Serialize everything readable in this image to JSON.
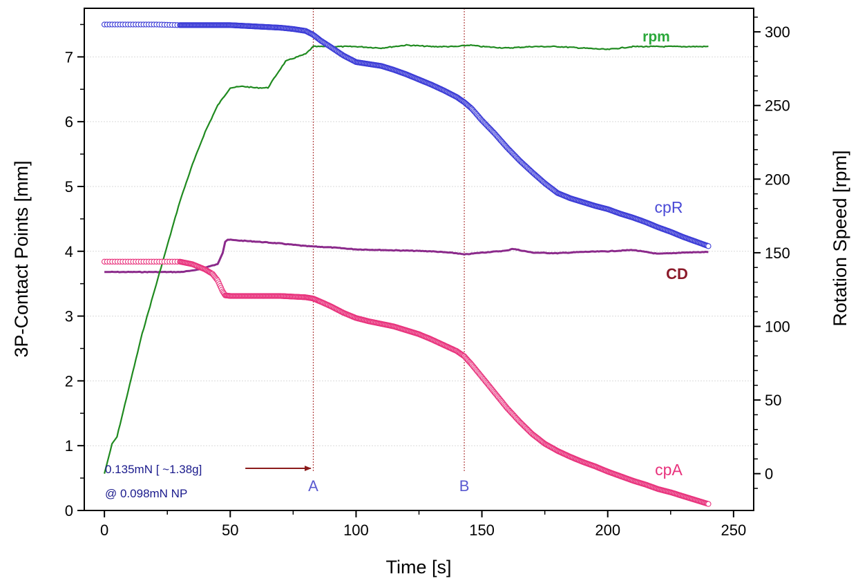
{
  "chart_data": {
    "type": "line",
    "xlabel": "Time  [s]",
    "ylabel_left": "3P-Contact Points [mm]",
    "ylabel_right": "Rotation Speed  [rpm]",
    "xlim": [
      -8,
      258
    ],
    "ylim_left": [
      0,
      7.75
    ],
    "ylim_right": [
      -25,
      316
    ],
    "x_ticks": [
      0,
      50,
      100,
      150,
      200,
      250
    ],
    "y_left_ticks": [
      0,
      1,
      2,
      3,
      4,
      5,
      6,
      7
    ],
    "y_right_ticks": [
      0,
      50,
      100,
      150,
      200,
      250,
      300
    ],
    "grid": true,
    "markers": [
      {
        "label": "A",
        "x": 83
      },
      {
        "label": "B",
        "x": 143
      }
    ],
    "annotation": {
      "line1": "0.135mN [ ~1.38g]",
      "line2": "@ 0.098mN NP",
      "arrow_from": [
        56,
        0.65
      ],
      "arrow_to": [
        82,
        0.65
      ]
    },
    "series": [
      {
        "name": "cpR",
        "axis": "left",
        "style": "circles",
        "color": "#3a3ad6",
        "x": [
          0,
          10,
          20,
          30,
          40,
          50,
          60,
          70,
          75,
          80,
          83,
          86,
          90,
          95,
          100,
          105,
          110,
          115,
          120,
          125,
          130,
          135,
          140,
          143,
          146,
          150,
          155,
          160,
          165,
          170,
          175,
          180,
          185,
          190,
          195,
          200,
          205,
          210,
          215,
          220,
          225,
          230,
          235,
          240
        ],
        "y": [
          7.5,
          7.5,
          7.5,
          7.49,
          7.49,
          7.49,
          7.47,
          7.45,
          7.43,
          7.4,
          7.34,
          7.25,
          7.15,
          7.02,
          6.92,
          6.89,
          6.86,
          6.8,
          6.73,
          6.65,
          6.57,
          6.48,
          6.38,
          6.3,
          6.2,
          6.02,
          5.82,
          5.6,
          5.4,
          5.22,
          5.05,
          4.9,
          4.82,
          4.76,
          4.7,
          4.65,
          4.58,
          4.52,
          4.45,
          4.37,
          4.3,
          4.22,
          4.15,
          4.08
        ]
      },
      {
        "name": "cpA",
        "axis": "left",
        "style": "circles",
        "color": "#e8327c",
        "x": [
          0,
          10,
          20,
          30,
          35,
          40,
          43,
          45,
          47,
          48,
          50,
          55,
          60,
          65,
          70,
          75,
          80,
          83,
          86,
          90,
          95,
          100,
          105,
          110,
          115,
          120,
          125,
          130,
          135,
          140,
          143,
          146,
          150,
          155,
          160,
          165,
          170,
          175,
          180,
          185,
          190,
          195,
          200,
          205,
          210,
          215,
          220,
          225,
          230,
          235,
          240
        ],
        "y": [
          3.84,
          3.84,
          3.84,
          3.84,
          3.8,
          3.72,
          3.65,
          3.55,
          3.38,
          3.32,
          3.31,
          3.31,
          3.31,
          3.31,
          3.31,
          3.3,
          3.29,
          3.27,
          3.22,
          3.15,
          3.05,
          2.97,
          2.92,
          2.88,
          2.84,
          2.78,
          2.72,
          2.64,
          2.55,
          2.46,
          2.38,
          2.25,
          2.06,
          1.82,
          1.58,
          1.37,
          1.18,
          1.03,
          0.92,
          0.83,
          0.75,
          0.68,
          0.6,
          0.53,
          0.46,
          0.4,
          0.33,
          0.28,
          0.22,
          0.16,
          0.1
        ]
      },
      {
        "name": "CD",
        "axis": "left",
        "style": "line",
        "color": "#8b2a8b",
        "x": [
          0,
          10,
          20,
          30,
          35,
          40,
          45,
          47,
          48,
          49,
          52,
          60,
          70,
          80,
          90,
          100,
          110,
          120,
          130,
          140,
          143,
          150,
          160,
          162,
          170,
          180,
          190,
          200,
          210,
          220,
          230,
          240
        ],
        "y": [
          3.68,
          3.68,
          3.68,
          3.68,
          3.7,
          3.75,
          3.8,
          3.98,
          4.15,
          4.18,
          4.17,
          4.15,
          4.12,
          4.08,
          4.06,
          4.03,
          4.02,
          4.01,
          4.0,
          3.97,
          3.95,
          3.98,
          4.01,
          4.04,
          3.98,
          3.97,
          3.99,
          4.0,
          4.02,
          3.96,
          3.98,
          3.99
        ]
      },
      {
        "name": "rpm",
        "axis": "right",
        "style": "line",
        "color": "#1f8a1f",
        "x": [
          0,
          3,
          5,
          10,
          15,
          20,
          25,
          30,
          35,
          40,
          45,
          50,
          55,
          60,
          65,
          68,
          70,
          72,
          75,
          80,
          83,
          85,
          90,
          100,
          110,
          120,
          130,
          140,
          145,
          150,
          160,
          170,
          180,
          190,
          200,
          210,
          220,
          230,
          240
        ],
        "y": [
          0,
          20,
          25,
          60,
          95,
          125,
          155,
          185,
          210,
          232,
          250,
          262,
          263,
          262,
          262,
          270,
          275,
          280,
          282,
          285,
          290,
          290,
          290,
          290,
          289,
          291,
          290,
          290,
          291,
          290,
          289,
          290,
          290,
          289,
          288,
          290,
          290,
          290,
          290
        ]
      }
    ],
    "series_labels": [
      {
        "text": "rpm",
        "series": "rpm"
      },
      {
        "text": "cpR",
        "series": "cpR"
      },
      {
        "text": "CD",
        "series": "CD"
      },
      {
        "text": "cpA",
        "series": "cpA"
      }
    ]
  }
}
